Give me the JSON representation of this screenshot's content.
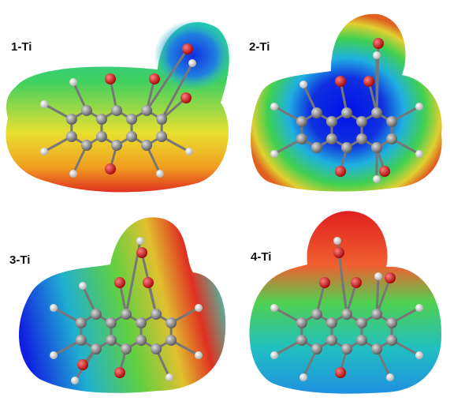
{
  "panels": [
    {
      "label": "1-Ti"
    },
    {
      "label": "2-Ti"
    },
    {
      "label": "3-Ti"
    },
    {
      "label": "4-Ti"
    }
  ]
}
